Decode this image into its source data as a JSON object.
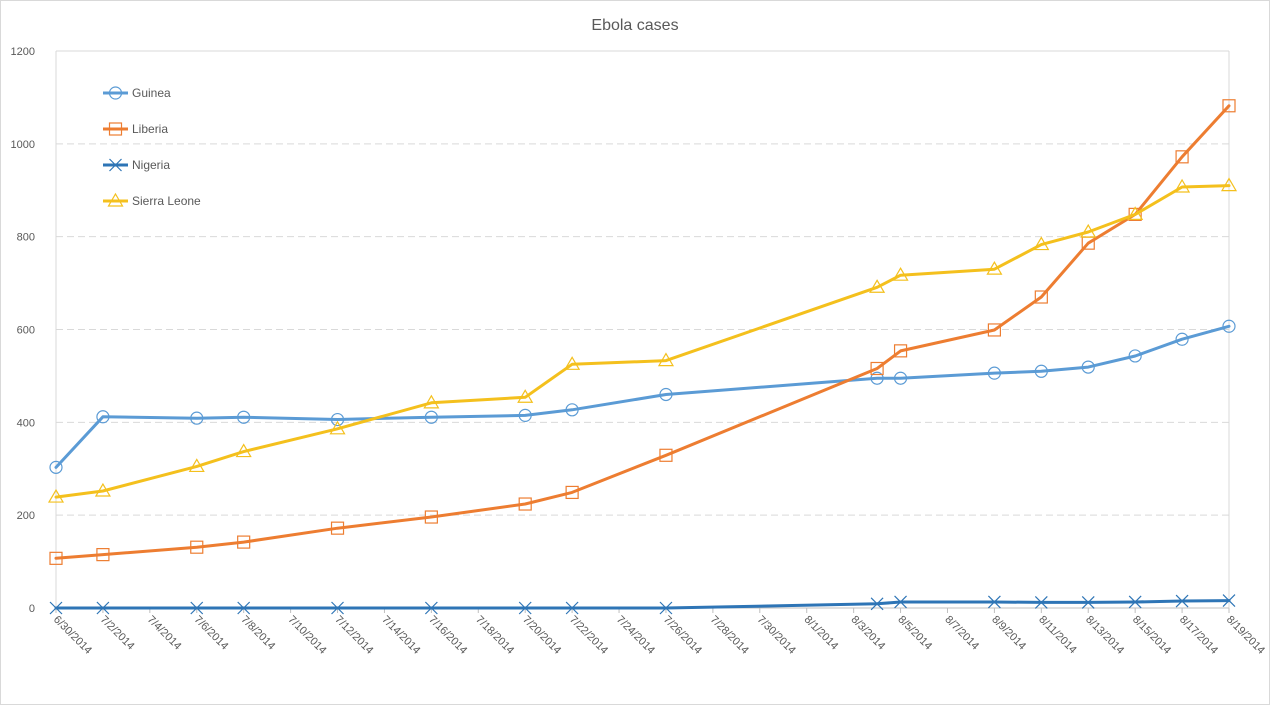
{
  "chart_data": {
    "type": "line",
    "title": "Ebola cases",
    "xlabel": "",
    "ylabel": "",
    "ylim": [
      0,
      1200
    ],
    "yticks": [
      0,
      200,
      400,
      600,
      800,
      1000,
      1200
    ],
    "grid": true,
    "legend_position": "top-left",
    "x_axis_start": "6/30/2014",
    "x_axis_end": "8/19/2014",
    "x_tick_labels": [
      "6/30/2014",
      "7/2/2014",
      "7/4/2014",
      "7/6/2014",
      "7/8/2014",
      "7/10/2014",
      "7/12/2014",
      "7/14/2014",
      "7/16/2014",
      "7/18/2014",
      "7/20/2014",
      "7/22/2014",
      "7/24/2014",
      "7/26/2014",
      "7/28/2014",
      "7/30/2014",
      "8/1/2014",
      "8/3/2014",
      "8/5/2014",
      "8/7/2014",
      "8/9/2014",
      "8/11/2014",
      "8/13/2014",
      "8/15/2014",
      "8/17/2014",
      "8/19/2014"
    ],
    "x": [
      "6/30/2014",
      "7/2/2014",
      "7/6/2014",
      "7/8/2014",
      "7/12/2014",
      "7/16/2014",
      "7/20/2014",
      "7/22/2014",
      "7/26/2014",
      "8/4/2014",
      "8/5/2014",
      "8/9/2014",
      "8/11/2014",
      "8/13/2014",
      "8/15/2014",
      "8/17/2014",
      "8/19/2014"
    ],
    "series": [
      {
        "name": "Guinea",
        "color": "#5b9bd5",
        "marker": "circle",
        "values": [
          303,
          412,
          409,
          411,
          406,
          411,
          415,
          427,
          460,
          495,
          495,
          506,
          510,
          519,
          543,
          579,
          607
        ]
      },
      {
        "name": "Liberia",
        "color": "#ed7d31",
        "marker": "square",
        "values": [
          107,
          115,
          131,
          142,
          172,
          196,
          224,
          249,
          329,
          516,
          554,
          599,
          670,
          786,
          848,
          972,
          1082
        ]
      },
      {
        "name": "Nigeria",
        "color": "#2e75b6",
        "marker": "x",
        "values": [
          0,
          0,
          0,
          0,
          0,
          0,
          0,
          0,
          0,
          9,
          13,
          13,
          12,
          12,
          13,
          15,
          16
        ]
      },
      {
        "name": "Sierra Leone",
        "color": "#f4c01d",
        "marker": "triangle",
        "values": [
          239,
          252,
          305,
          337,
          386,
          442,
          454,
          525,
          533,
          691,
          717,
          730,
          783,
          810,
          848,
          907,
          910
        ]
      }
    ]
  }
}
